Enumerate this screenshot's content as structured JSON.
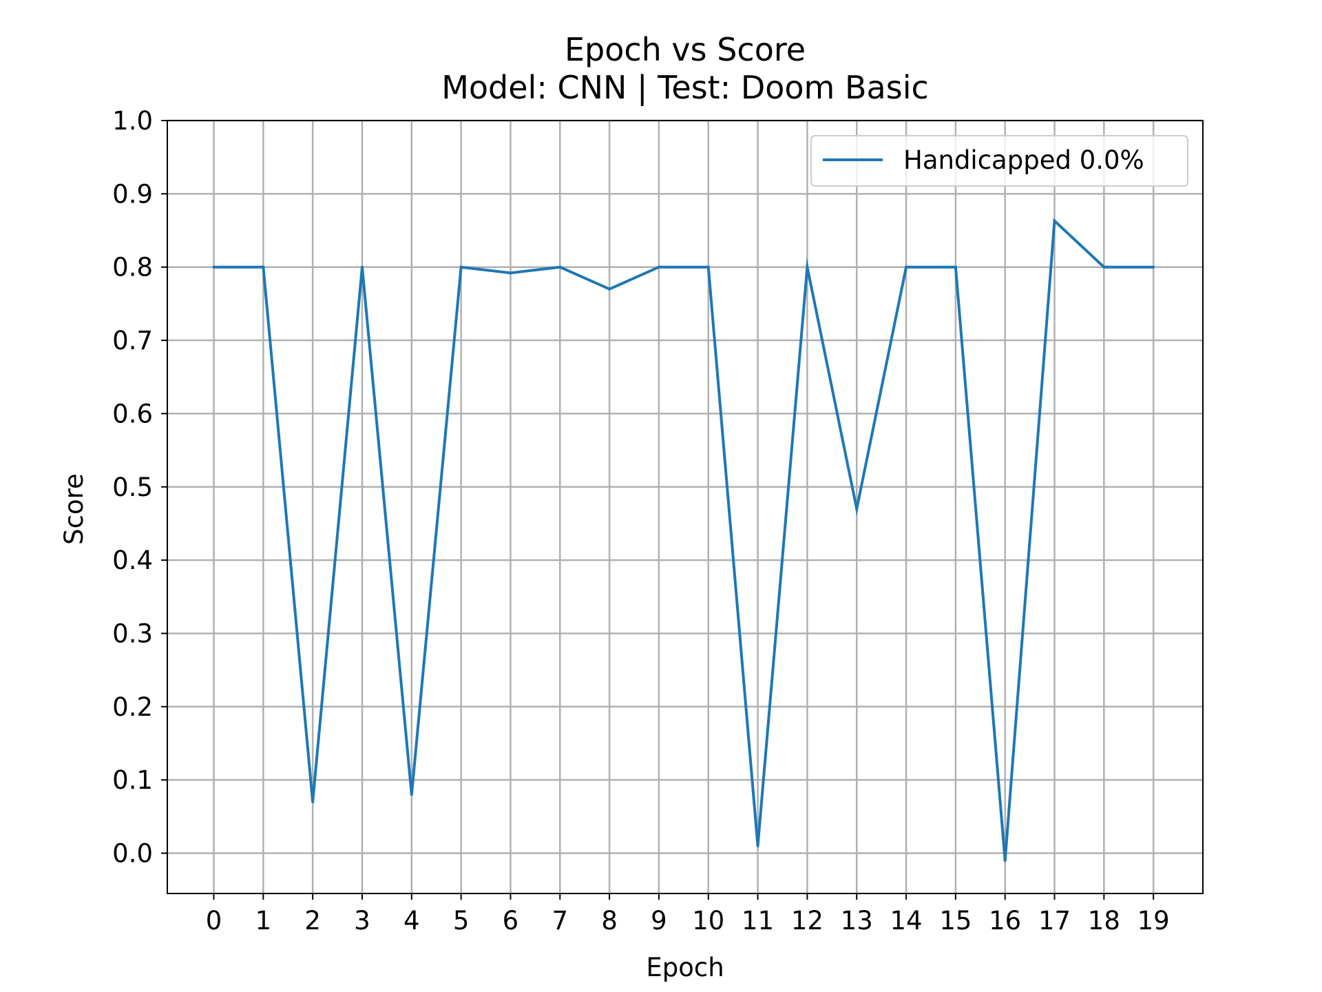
{
  "chart_data": {
    "type": "line",
    "title": "Epoch vs Score",
    "subtitle": "Model: CNN | Test: Doom Basic",
    "xlabel": "Epoch",
    "ylabel": "Score",
    "x": [
      0,
      1,
      2,
      3,
      4,
      5,
      6,
      7,
      8,
      9,
      10,
      11,
      12,
      13,
      14,
      15,
      16,
      17,
      18,
      19
    ],
    "xticks": [
      "0",
      "1",
      "2",
      "3",
      "4",
      "5",
      "6",
      "7",
      "8",
      "9",
      "10",
      "11",
      "12",
      "13",
      "14",
      "15",
      "16",
      "17",
      "18",
      "19"
    ],
    "yticks": [
      "0.0",
      "0.1",
      "0.2",
      "0.3",
      "0.4",
      "0.5",
      "0.6",
      "0.7",
      "0.8",
      "0.9",
      "1.0"
    ],
    "ytick_values": [
      0.0,
      0.1,
      0.2,
      0.3,
      0.4,
      0.5,
      0.6,
      0.7,
      0.8,
      0.9,
      1.0
    ],
    "xlim": [
      -0.94,
      20.0
    ],
    "ylim": [
      -0.055,
      1.0
    ],
    "grid": true,
    "legend_position": "top-right",
    "series": [
      {
        "name": "Handicapped 0.0%",
        "color": "#1f77b4",
        "values": [
          0.8,
          0.8,
          0.07,
          0.8,
          0.08,
          0.8,
          0.792,
          0.8,
          0.77,
          0.8,
          0.8,
          0.01,
          0.8,
          0.47,
          0.8,
          0.8,
          -0.01,
          0.863,
          0.8,
          0.8
        ]
      }
    ]
  }
}
